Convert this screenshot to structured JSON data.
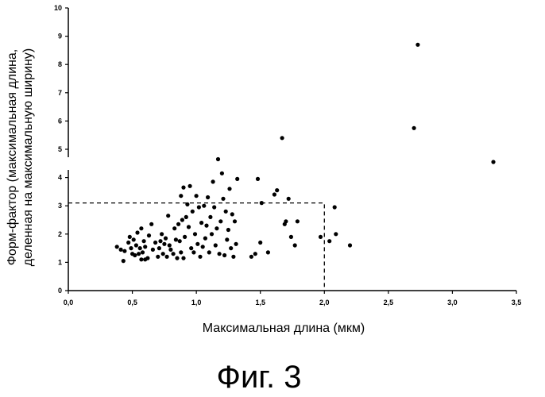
{
  "figure": {
    "caption": "Фиг. 3"
  },
  "chart_data": {
    "type": "scatter",
    "title": "",
    "xlabel": "Максимальная длина (мкм)",
    "ylabel_line1": "Форм-фактор (максимальная длина,",
    "ylabel_line2": "деленная на максимальную ширину)",
    "xlim": [
      0,
      3.5
    ],
    "ylim": [
      0,
      10
    ],
    "xticks": [
      "0,0",
      "0,5",
      "1,0",
      "1,5",
      "2,0",
      "2,5",
      "3,0",
      "3,5"
    ],
    "yticks": [
      "0",
      "1",
      "2",
      "3",
      "4",
      "5",
      "6",
      "7",
      "8",
      "9",
      "10"
    ],
    "grid": false,
    "legend": "none",
    "reference_box": {
      "x": [
        0,
        2.0
      ],
      "y": [
        0,
        3.1
      ]
    },
    "colors": {
      "points": "#000000",
      "axes": "#000000"
    },
    "points": [
      [
        0.38,
        1.55
      ],
      [
        0.41,
        1.45
      ],
      [
        0.43,
        1.05
      ],
      [
        0.44,
        1.4
      ],
      [
        0.47,
        1.7
      ],
      [
        0.48,
        1.9
      ],
      [
        0.49,
        1.5
      ],
      [
        0.5,
        1.3
      ],
      [
        0.51,
        1.8
      ],
      [
        0.52,
        1.25
      ],
      [
        0.53,
        1.6
      ],
      [
        0.54,
        2.05
      ],
      [
        0.55,
        1.3
      ],
      [
        0.56,
        1.5
      ],
      [
        0.57,
        1.1
      ],
      [
        0.57,
        2.2
      ],
      [
        0.58,
        1.35
      ],
      [
        0.59,
        1.75
      ],
      [
        0.6,
        1.1
      ],
      [
        0.6,
        1.55
      ],
      [
        0.62,
        1.15
      ],
      [
        0.63,
        1.95
      ],
      [
        0.65,
        2.35
      ],
      [
        0.66,
        1.45
      ],
      [
        0.68,
        1.7
      ],
      [
        0.7,
        1.2
      ],
      [
        0.71,
        1.5
      ],
      [
        0.72,
        1.75
      ],
      [
        0.73,
        2.0
      ],
      [
        0.74,
        1.3
      ],
      [
        0.75,
        1.65
      ],
      [
        0.76,
        1.85
      ],
      [
        0.77,
        1.2
      ],
      [
        0.78,
        2.65
      ],
      [
        0.79,
        1.6
      ],
      [
        0.8,
        1.45
      ],
      [
        0.82,
        1.3
      ],
      [
        0.83,
        2.2
      ],
      [
        0.84,
        1.8
      ],
      [
        0.85,
        1.15
      ],
      [
        0.86,
        2.35
      ],
      [
        0.87,
        1.75
      ],
      [
        0.88,
        1.35
      ],
      [
        0.88,
        3.35
      ],
      [
        0.89,
        2.5
      ],
      [
        0.9,
        1.15
      ],
      [
        0.9,
        3.65
      ],
      [
        0.91,
        1.9
      ],
      [
        0.92,
        2.6
      ],
      [
        0.93,
        3.05
      ],
      [
        0.94,
        2.25
      ],
      [
        0.95,
        3.7
      ],
      [
        0.96,
        1.5
      ],
      [
        0.97,
        2.8
      ],
      [
        0.98,
        1.35
      ],
      [
        0.99,
        2.0
      ],
      [
        1.0,
        3.35
      ],
      [
        1.01,
        1.65
      ],
      [
        1.02,
        2.95
      ],
      [
        1.03,
        1.2
      ],
      [
        1.04,
        2.4
      ],
      [
        1.05,
        1.55
      ],
      [
        1.06,
        3.0
      ],
      [
        1.07,
        1.85
      ],
      [
        1.08,
        2.3
      ],
      [
        1.09,
        3.3
      ],
      [
        1.1,
        1.35
      ],
      [
        1.11,
        2.6
      ],
      [
        1.12,
        2.0
      ],
      [
        1.13,
        3.85
      ],
      [
        1.14,
        2.95
      ],
      [
        1.15,
        1.6
      ],
      [
        1.16,
        2.2
      ],
      [
        1.17,
        4.65
      ],
      [
        1.18,
        1.3
      ],
      [
        1.19,
        2.45
      ],
      [
        1.2,
        4.15
      ],
      [
        1.21,
        3.25
      ],
      [
        1.22,
        1.25
      ],
      [
        1.23,
        2.8
      ],
      [
        1.24,
        1.8
      ],
      [
        1.25,
        2.15
      ],
      [
        1.26,
        3.6
      ],
      [
        1.27,
        1.5
      ],
      [
        1.28,
        2.7
      ],
      [
        1.29,
        1.2
      ],
      [
        1.3,
        2.45
      ],
      [
        1.31,
        1.65
      ],
      [
        1.32,
        3.95
      ],
      [
        1.43,
        1.2
      ],
      [
        1.46,
        1.3
      ],
      [
        1.48,
        3.95
      ],
      [
        1.5,
        1.7
      ],
      [
        1.51,
        3.1
      ],
      [
        1.56,
        1.35
      ],
      [
        1.61,
        3.4
      ],
      [
        1.63,
        3.55
      ],
      [
        1.67,
        5.4
      ],
      [
        1.69,
        2.35
      ],
      [
        1.7,
        2.45
      ],
      [
        1.72,
        3.25
      ],
      [
        1.74,
        1.9
      ],
      [
        1.77,
        1.6
      ],
      [
        1.79,
        2.45
      ],
      [
        1.97,
        1.9
      ],
      [
        2.04,
        1.75
      ],
      [
        2.08,
        2.95
      ],
      [
        2.09,
        2.0
      ],
      [
        2.2,
        1.6
      ],
      [
        2.7,
        5.75
      ],
      [
        2.73,
        8.7
      ],
      [
        3.32,
        4.55
      ]
    ]
  }
}
